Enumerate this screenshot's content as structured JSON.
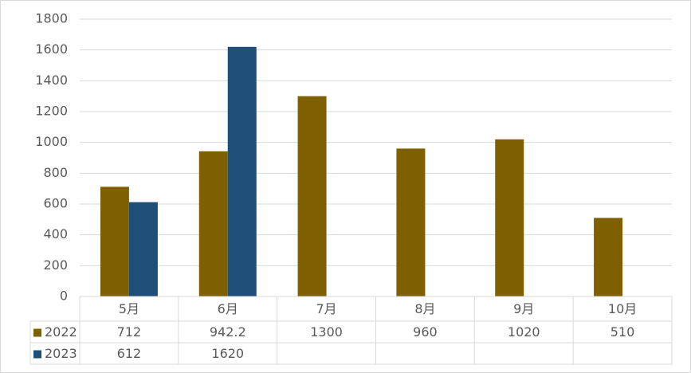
{
  "chart_data": {
    "type": "bar",
    "categories": [
      "5月",
      "6月",
      "7月",
      "8月",
      "9月",
      "10月"
    ],
    "series": [
      {
        "name": "2022",
        "color": "#7f6000",
        "values": [
          712,
          942.2,
          1300,
          960,
          1020,
          510
        ]
      },
      {
        "name": "2023",
        "color": "#1f4e79",
        "values": [
          612,
          1620,
          null,
          null,
          null,
          null
        ]
      }
    ],
    "ylim": [
      0,
      1800
    ],
    "yticks": [
      0,
      200,
      400,
      600,
      800,
      1000,
      1200,
      1400,
      1600,
      1800
    ],
    "grid": true
  }
}
